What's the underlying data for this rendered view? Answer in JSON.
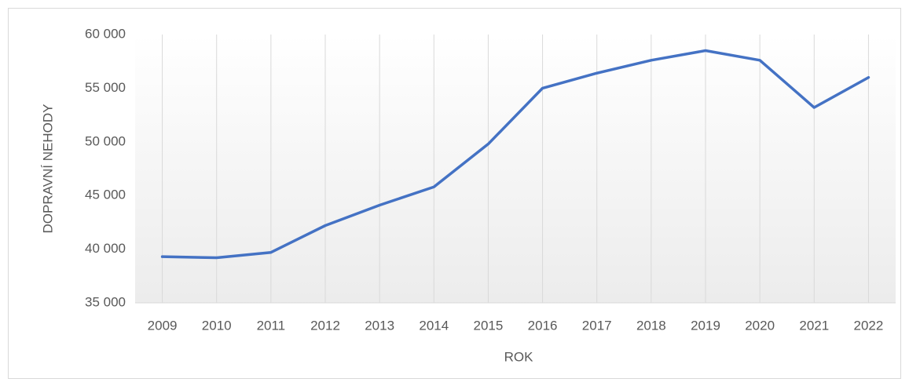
{
  "chart_data": {
    "type": "line",
    "x_label": "ROK",
    "y_label": "DOPRAVNÍ NEHODY",
    "categories": [
      "2009",
      "2010",
      "2011",
      "2012",
      "2013",
      "2014",
      "2015",
      "2016",
      "2017",
      "2018",
      "2019",
      "2020",
      "2021",
      "2022"
    ],
    "series": [
      {
        "name": "DOPRAVNÍ NEHODY",
        "color": "#4472c4",
        "values": [
          39300,
          39200,
          39700,
          42200,
          44100,
          45800,
          49800,
          55000,
          56400,
          57600,
          58500,
          57600,
          53200,
          56000
        ]
      }
    ],
    "ylim": [
      35000,
      60000
    ],
    "yticks": [
      {
        "value": 35000,
        "label": "35 000"
      },
      {
        "value": 40000,
        "label": "40 000"
      },
      {
        "value": 45000,
        "label": "45 000"
      },
      {
        "value": 50000,
        "label": "50 000"
      },
      {
        "value": 55000,
        "label": "55 000"
      },
      {
        "value": 60000,
        "label": "60 000"
      }
    ],
    "grid": "vertical",
    "legend": false
  }
}
